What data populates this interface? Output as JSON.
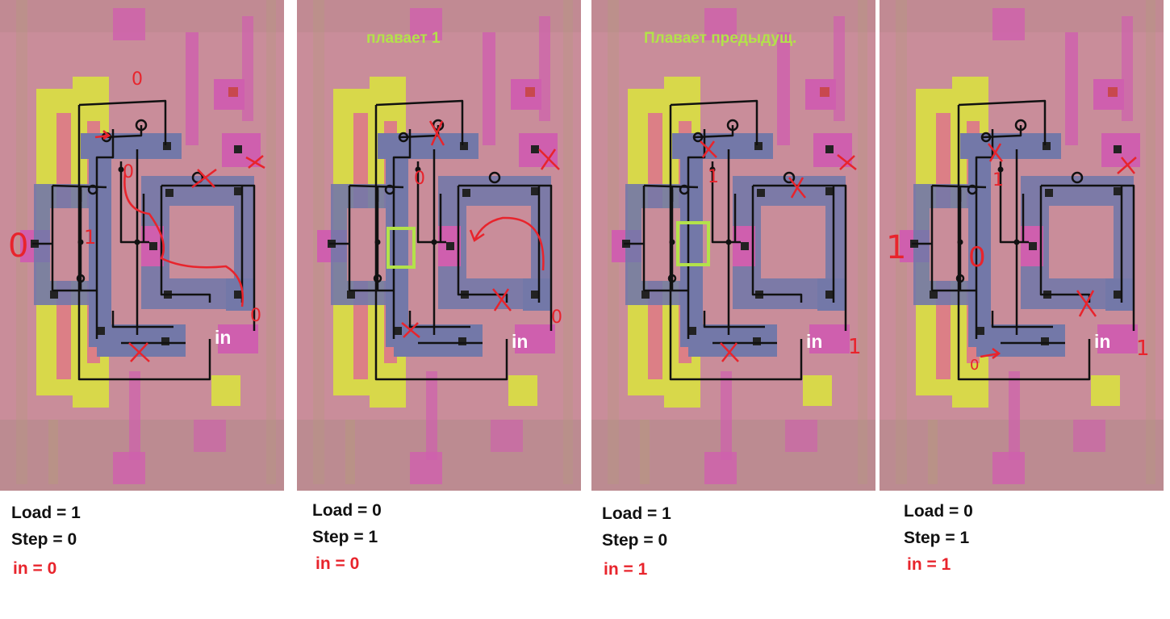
{
  "colors": {
    "background": "#c98d9a",
    "yellow": "#d8d84a",
    "magenta": "#d063b8",
    "blue": "#7378a8",
    "wire": "#111111",
    "red": "#e8242c",
    "green": "#b3e24a",
    "annotation": "#e8242c"
  },
  "panels": [
    {
      "title": "",
      "in_label": "in",
      "values": {
        "left": "0",
        "node": "1",
        "top": "0",
        "right": "0"
      },
      "captions": {
        "load": "Load = 1",
        "step": "Step = 0",
        "in": "in = 0"
      }
    },
    {
      "title": "плавает 1",
      "in_label": "in",
      "values": {
        "node": "0",
        "right": "0"
      },
      "captions": {
        "load": "Load = 0",
        "step": "Step = 1",
        "in": "in = 0"
      }
    },
    {
      "title": "Плавает предыдущ.",
      "in_label": "in",
      "values": {
        "node": "1",
        "right": "1"
      },
      "captions": {
        "load": "Load = 1",
        "step": "Step = 0",
        "in": "in = 1"
      }
    },
    {
      "title": "",
      "in_label": "in",
      "values": {
        "left": "1",
        "node": "1",
        "mid": "0",
        "bottom": "0",
        "right": "1"
      },
      "captions": {
        "load": "Load = 0",
        "step": "Step = 1",
        "in": "in = 1"
      }
    }
  ]
}
